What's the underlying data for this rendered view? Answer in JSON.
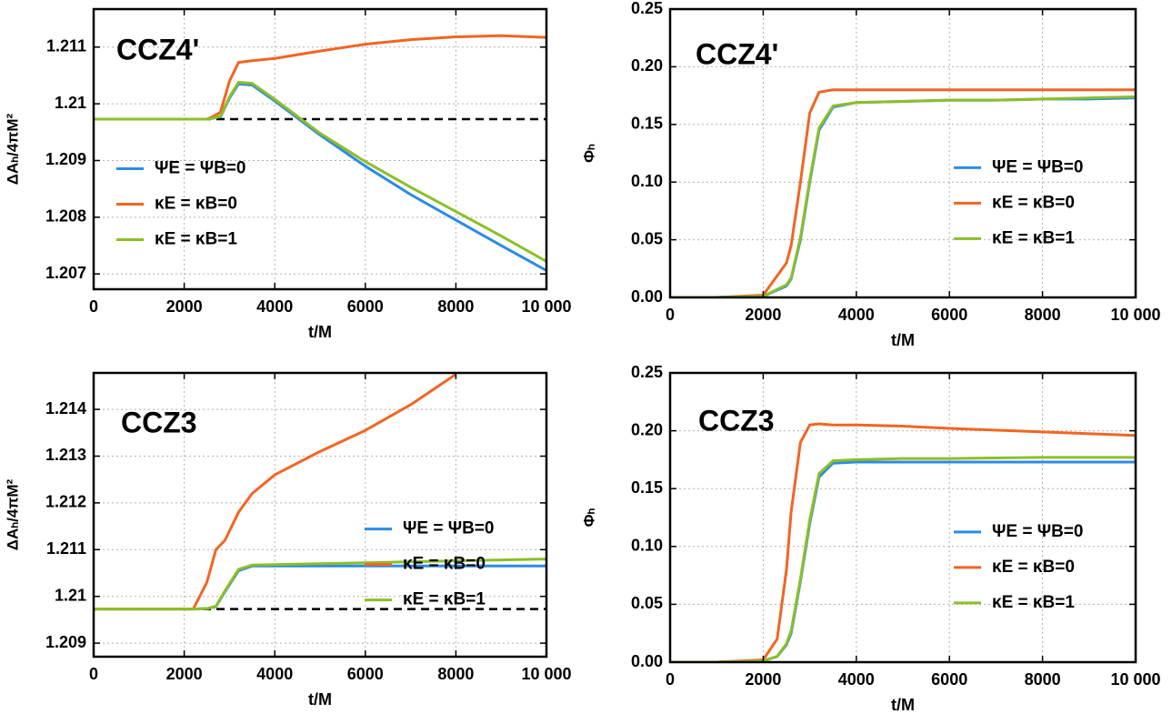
{
  "chart_data": [
    {
      "type": "line",
      "annotation": "CCZ4'",
      "xlabel": "t/M",
      "ylabel": "ΔAₕ/4πM²",
      "xlim": [
        0,
        10000
      ],
      "xticks": [
        0,
        2000,
        4000,
        6000,
        8000,
        {
          "value": 10000,
          "label": "10 000"
        }
      ],
      "ylim": [
        1.20673,
        1.21167
      ],
      "yticks": [
        1.207,
        1.208,
        1.209,
        1.21,
        1.211
      ],
      "grid": true,
      "legend": "center left",
      "reference_line": {
        "value": 1.20973,
        "color": "#000000",
        "dashed": true
      },
      "x": [
        0,
        1000,
        2000,
        2500,
        2600,
        2800,
        3000,
        3200,
        3500,
        4000,
        5000,
        6000,
        7000,
        8000,
        9000,
        10000
      ],
      "series": [
        {
          "name": "ΨE = ΨB=0",
          "color": "#2a8be6",
          "values": [
            1.20973,
            1.20973,
            1.20973,
            1.20973,
            1.20974,
            1.20977,
            1.2101,
            1.21035,
            1.21033,
            1.21005,
            1.20945,
            1.2089,
            1.2084,
            1.20795,
            1.2075,
            1.20706
          ]
        },
        {
          "name": "κE = κB=0",
          "color": "#f26522",
          "values": [
            1.20973,
            1.20973,
            1.20973,
            1.20973,
            1.20976,
            1.20985,
            1.2104,
            1.21073,
            1.21076,
            1.2108,
            1.21093,
            1.21105,
            1.21113,
            1.21118,
            1.2112,
            1.21117
          ]
        },
        {
          "name": "κE = κB=1",
          "color": "#8cbf26",
          "values": [
            1.20973,
            1.20973,
            1.20973,
            1.20973,
            1.20974,
            1.20978,
            1.21012,
            1.21038,
            1.21036,
            1.21008,
            1.20948,
            1.20898,
            1.20853,
            1.2081,
            1.20767,
            1.20722
          ]
        }
      ]
    },
    {
      "type": "line",
      "annotation": "CCZ4'",
      "xlabel": "t/M",
      "ylabel": "Φₕ",
      "xlim": [
        0,
        10000
      ],
      "xticks": [
        0,
        2000,
        4000,
        6000,
        8000,
        {
          "value": 10000,
          "label": "10 000"
        }
      ],
      "ylim": [
        0,
        0.25
      ],
      "yticks": [
        {
          "value": 0,
          "label": "0.00"
        },
        {
          "value": 0.05,
          "label": "0.05"
        },
        {
          "value": 0.1,
          "label": "0.10"
        },
        {
          "value": 0.15,
          "label": "0.15"
        },
        {
          "value": 0.2,
          "label": "0.20"
        },
        {
          "value": 0.25,
          "label": "0.25"
        }
      ],
      "grid": true,
      "legend": "center right",
      "x": [
        0,
        1000,
        2000,
        2500,
        2600,
        2800,
        3000,
        3200,
        3500,
        4000,
        5000,
        6000,
        7000,
        8000,
        9000,
        10000
      ],
      "series": [
        {
          "name": "ΨE = ΨB=0",
          "color": "#2a8be6",
          "values": [
            0,
            0,
            0.001,
            0.01,
            0.016,
            0.05,
            0.1,
            0.145,
            0.165,
            0.169,
            0.17,
            0.171,
            0.171,
            0.172,
            0.172,
            0.173
          ]
        },
        {
          "name": "κE = κB=0",
          "color": "#f26522",
          "values": [
            0,
            0,
            0.002,
            0.03,
            0.045,
            0.1,
            0.16,
            0.178,
            0.18,
            0.18,
            0.18,
            0.18,
            0.18,
            0.18,
            0.18,
            0.18
          ]
        },
        {
          "name": "κE = κB=1",
          "color": "#8cbf26",
          "values": [
            0,
            0,
            0.001,
            0.011,
            0.017,
            0.052,
            0.102,
            0.147,
            0.166,
            0.169,
            0.17,
            0.171,
            0.171,
            0.172,
            0.173,
            0.174
          ]
        }
      ]
    },
    {
      "type": "line",
      "annotation": "CCZ3",
      "xlabel": "t/M",
      "ylabel": "ΔAₕ/4πM²",
      "xlim": [
        0,
        10000
      ],
      "xticks": [
        0,
        2000,
        4000,
        6000,
        8000,
        {
          "value": 10000,
          "label": "10 000"
        }
      ],
      "ylim": [
        1.20871,
        1.21478
      ],
      "yticks": [
        1.209,
        1.21,
        1.211,
        1.212,
        1.213,
        1.214
      ],
      "grid": true,
      "legend": "center right",
      "reference_line": {
        "value": 1.20973,
        "color": "#000000",
        "dashed": true
      },
      "x": [
        0,
        1000,
        2000,
        2200,
        2500,
        2700,
        2900,
        3200,
        3500,
        4000,
        5000,
        6000,
        7000,
        8000,
        9000,
        10000
      ],
      "series": [
        {
          "name": "ΨE = ΨB=0",
          "color": "#2a8be6",
          "values": [
            1.20973,
            1.20973,
            1.20973,
            1.20973,
            1.20974,
            1.20978,
            1.2101,
            1.21055,
            1.21065,
            1.21065,
            1.21065,
            1.21065,
            1.21065,
            1.21065,
            1.21065,
            1.21065
          ]
        },
        {
          "name": "κE = κB=0",
          "color": "#f26522",
          "values": [
            1.20973,
            1.20973,
            1.20973,
            1.20973,
            1.2103,
            1.211,
            1.2112,
            1.2118,
            1.2122,
            1.2126,
            1.2131,
            1.21355,
            1.2141,
            1.21475,
            null,
            null
          ]
        },
        {
          "name": "κE = κB=1",
          "color": "#8cbf26",
          "values": [
            1.20973,
            1.20973,
            1.20973,
            1.20973,
            1.20974,
            1.20979,
            1.21012,
            1.21058,
            1.21067,
            1.21068,
            1.2107,
            1.21072,
            1.21074,
            1.21076,
            1.21078,
            1.2108
          ]
        }
      ]
    },
    {
      "type": "line",
      "annotation": "CCZ3",
      "xlabel": "t/M",
      "ylabel": "Φₕ",
      "xlim": [
        0,
        10000
      ],
      "xticks": [
        0,
        2000,
        4000,
        6000,
        8000,
        {
          "value": 10000,
          "label": "10 000"
        }
      ],
      "ylim": [
        0,
        0.25
      ],
      "yticks": [
        {
          "value": 0,
          "label": "0.00"
        },
        {
          "value": 0.05,
          "label": "0.05"
        },
        {
          "value": 0.1,
          "label": "0.10"
        },
        {
          "value": 0.15,
          "label": "0.15"
        },
        {
          "value": 0.2,
          "label": "0.20"
        },
        {
          "value": 0.25,
          "label": "0.25"
        }
      ],
      "grid": true,
      "legend": "center right",
      "x": [
        0,
        1000,
        2000,
        2300,
        2500,
        2600,
        2800,
        3000,
        3200,
        3500,
        4000,
        5000,
        6000,
        8000,
        10000
      ],
      "series": [
        {
          "name": "ΨE = ΨB=0",
          "color": "#2a8be6",
          "values": [
            0,
            0,
            0.001,
            0.005,
            0.015,
            0.025,
            0.07,
            0.12,
            0.16,
            0.172,
            0.173,
            0.173,
            0.173,
            0.173,
            0.173
          ]
        },
        {
          "name": "κE = κB=0",
          "color": "#f26522",
          "values": [
            0,
            0,
            0.002,
            0.02,
            0.08,
            0.13,
            0.19,
            0.205,
            0.206,
            0.205,
            0.205,
            0.204,
            0.202,
            0.199,
            0.196
          ]
        },
        {
          "name": "κE = κB=1",
          "color": "#8cbf26",
          "values": [
            0,
            0,
            0.001,
            0.005,
            0.016,
            0.027,
            0.072,
            0.123,
            0.163,
            0.174,
            0.175,
            0.176,
            0.176,
            0.177,
            0.177
          ]
        }
      ]
    }
  ]
}
